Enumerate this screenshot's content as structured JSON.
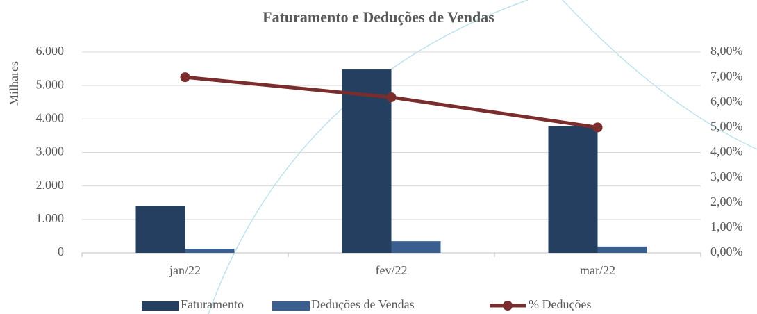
{
  "chart_data": {
    "type": "bar-line",
    "title": "Faturamento e Deduções de Vendas",
    "ylabel": "Milhares",
    "categories": [
      "jan/22",
      "fev/22",
      "mar/22"
    ],
    "series": [
      {
        "name": "Faturamento",
        "type": "bar",
        "color": "#243f60",
        "values": [
          1410,
          5480,
          3790
        ]
      },
      {
        "name": "Deduções de Vendas",
        "type": "bar",
        "color": "#3a5f8f",
        "values": [
          125,
          350,
          190
        ]
      },
      {
        "name": "% Deduções",
        "type": "line",
        "axis": "y2",
        "color": "#7b2c2c",
        "values": [
          7.0,
          6.2,
          5.0
        ]
      }
    ],
    "ylim": [
      0,
      6000
    ],
    "yticks": [
      0,
      {
        "value": 1000,
        "label": "1.000"
      },
      {
        "value": 2000,
        "label": "2.000"
      },
      {
        "value": 3000,
        "label": "3.000"
      },
      {
        "value": 4000,
        "label": "4.000"
      },
      {
        "value": 5000,
        "label": "5.000"
      },
      {
        "value": 6000,
        "label": "6.000"
      }
    ],
    "y2lim": [
      0,
      8
    ],
    "y2ticks": [
      {
        "value": 0,
        "label": "0,00%"
      },
      {
        "value": 1,
        "label": "1,00%"
      },
      {
        "value": 2,
        "label": "2,00%"
      },
      {
        "value": 3,
        "label": "3,00%"
      },
      {
        "value": 4,
        "label": "4,00%"
      },
      {
        "value": 5,
        "label": "5,00%"
      },
      {
        "value": 6,
        "label": "6,00%"
      },
      {
        "value": 7,
        "label": "7,00%"
      },
      {
        "value": 8,
        "label": "8,00%"
      }
    ],
    "grid": true,
    "legend": "bottom"
  }
}
